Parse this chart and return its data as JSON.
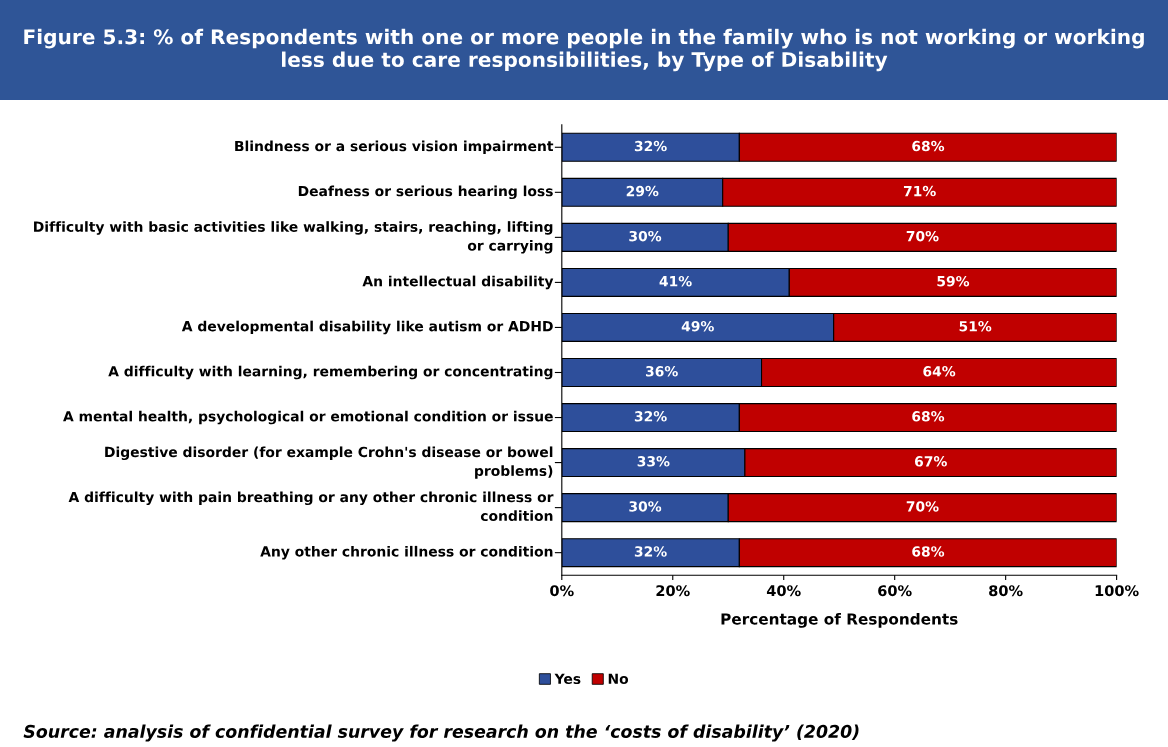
{
  "chart_data": {
    "type": "bar",
    "orientation": "horizontal",
    "stacked": true,
    "title": "Figure 5.3: % of Respondents with one or more people in the family who is not working or working less due to care responsibilities, by Type of Disability",
    "xlabel": "Percentage of Respondents",
    "categories": [
      "Blindness or a serious vision impairment",
      "Deafness or serious hearing loss",
      "Difficulty with basic activities like walking, stairs, reaching, lifting or carrying",
      "An intellectual disability",
      "A developmental disability like autism or ADHD",
      "A difficulty with learning, remembering or concentrating",
      "A mental health, psychological or emotional condition or issue",
      "Digestive disorder (for example Crohn's disease or bowel problems)",
      "A difficulty with pain breathing or any other chronic illness or condition",
      "Any other chronic illness or condition"
    ],
    "series": [
      {
        "name": "Yes",
        "color": "#2e4f9b",
        "values": [
          32,
          29,
          30,
          41,
          49,
          36,
          32,
          33,
          30,
          32
        ],
        "value_labels": [
          "32%",
          "29%",
          "30%",
          "41%",
          "49%",
          "36%",
          "32%",
          "33%",
          "30%",
          "32%"
        ]
      },
      {
        "name": "No",
        "color": "#c00000",
        "values": [
          68,
          71,
          70,
          59,
          51,
          64,
          68,
          67,
          70,
          68
        ],
        "value_labels": [
          "68%",
          "71%",
          "70%",
          "59%",
          "51%",
          "64%",
          "68%",
          "67%",
          "70%",
          "68%"
        ]
      }
    ],
    "xlim": [
      0,
      100
    ],
    "xticks": [
      {
        "value": 0,
        "label": "0%"
      },
      {
        "value": 20,
        "label": "20%"
      },
      {
        "value": 40,
        "label": "40%"
      },
      {
        "value": 60,
        "label": "60%"
      },
      {
        "value": 80,
        "label": "80%"
      },
      {
        "value": 100,
        "label": "100%"
      }
    ],
    "grid": false,
    "legend": "bottom",
    "annotations": [
      "Source: analysis of confidential survey for research on the ‘costs of disability’ (2020)"
    ]
  }
}
